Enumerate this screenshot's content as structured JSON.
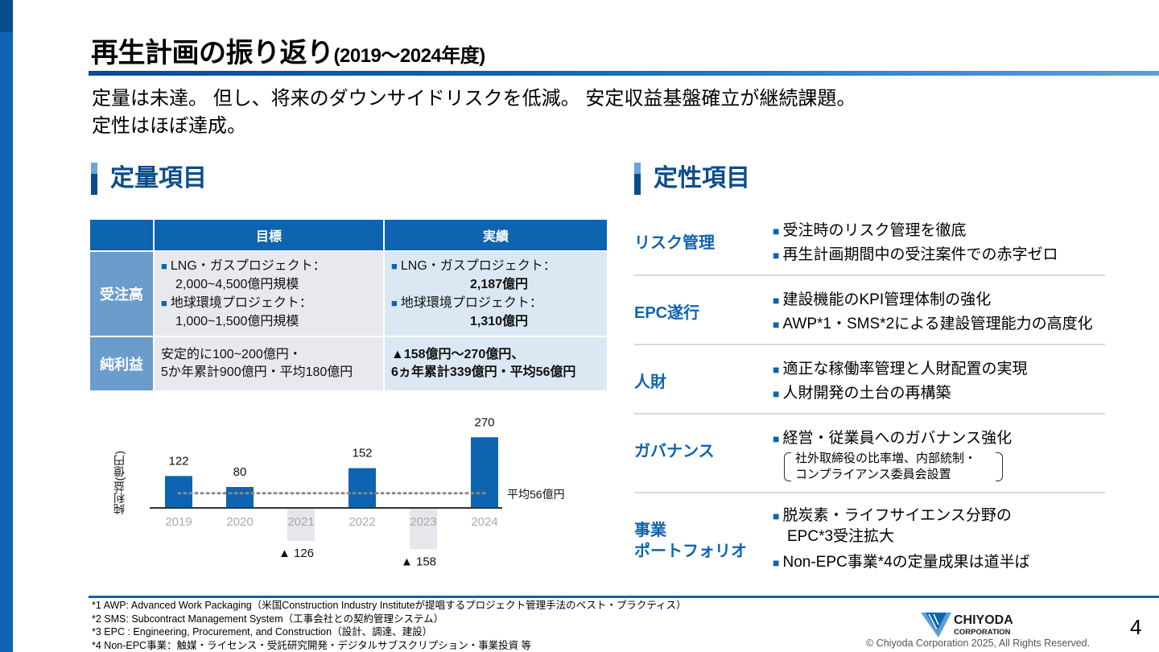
{
  "title": {
    "main": "再生計画の振り返り",
    "sub": "(2019～2024年度)"
  },
  "summary": {
    "line1": "定量は未達。 但し、将来のダウンサイドリスクを低減。 安定収益基盤確立が継続課題。",
    "line2": "定性はほぼ達成。"
  },
  "left_section": {
    "title": "定量項目"
  },
  "right_section": {
    "title": "定性項目"
  },
  "table": {
    "headers": [
      "目標",
      "実績"
    ],
    "rows": [
      {
        "label": "受注高",
        "target": [
          {
            "title": "LNG・ガスプロジェクト：",
            "value": "2,000~4,500億円規模"
          },
          {
            "title": "地球環境プロジェクト：",
            "value": "1,000~1,500億円規模"
          }
        ],
        "actual": [
          {
            "title": "LNG・ガスプロジェクト：",
            "value": "2,187億円"
          },
          {
            "title": "地球環境プロジェクト：",
            "value": "1,310億円"
          }
        ]
      },
      {
        "label": "純利益",
        "target": [
          "安定的に100~200億円・",
          "5か年累計900億円・平均180億円"
        ],
        "actual": [
          "▲158億円～270億円、",
          "6ヵ年累計339億円・平均56億円"
        ]
      }
    ]
  },
  "chart_data": {
    "type": "bar",
    "categories": [
      "2019",
      "2020",
      "2021",
      "2022",
      "2023",
      "2024"
    ],
    "values": [
      122,
      80,
      -126,
      152,
      -158,
      270
    ],
    "labels": [
      "122",
      "80",
      "▲ 126",
      "152",
      "▲ 158",
      "270"
    ],
    "ylabel": "純利益(億円)",
    "average": {
      "value": 56,
      "label": "平均56億円"
    },
    "colors": {
      "positive": "#0e64b0",
      "negative": "#e6e6ec",
      "axis": "#333333",
      "average": "#888888"
    },
    "ylim": [
      -158,
      270
    ]
  },
  "qualitative": [
    {
      "label": "リスク管理",
      "items": [
        "受注時のリスク管理を徹底",
        "再生計画期間中の受注案件での赤字ゼロ"
      ]
    },
    {
      "label": "EPC遂行",
      "items": [
        "建設機能のKPI管理体制の強化",
        "AWP*1・SMS*2による建設管理能力の高度化"
      ]
    },
    {
      "label": "人財",
      "items": [
        "適正な稼働率管理と人財配置の実現",
        "人財開発の土台の再構築"
      ]
    },
    {
      "label": "ガバナンス",
      "items": [
        "経営・従業員へのガバナンス強化"
      ],
      "bracket": [
        "社外取締役の比率増、内部統制・",
        "コンプライアンス委員会設置"
      ]
    },
    {
      "label_lines": [
        "事業",
        "ポートフォリオ"
      ],
      "items_multi": [
        [
          "脱炭素・ライフサイエンス分野の",
          "EPC*3受注拡大"
        ],
        [
          "Non-EPC事業*4の定量成果は道半ば"
        ]
      ]
    }
  ],
  "notes": [
    "*1 AWP: Advanced Work Packaging（米国Construction Industry Instituteが提唱するプロジェクト管理手法のベスト・プラクティス）",
    "*2 SMS: Subcontract Management System（工事会社との契約管理システム）",
    "*3 EPC : Engineering, Procurement, and Construction（設計、調達、建設）",
    "*4 Non-EPC事業：触媒・ライセンス・受託研究開発・デジタルサブスクリプション・事業投資 等"
  ],
  "footer": {
    "page_number": "4",
    "copyright": "© Chiyoda Corporation 2025, All Rights Reserved.",
    "logo_line1": "CHIYODA",
    "logo_line2": "CORPORATION"
  },
  "colors": {
    "brand_blue": "#0e64b0",
    "dark_blue": "#0a4d8c",
    "row_header": "#6a9ccc",
    "target_bg": "#e8e9ee",
    "actual_bg": "#dbe8f4"
  },
  "icons": {
    "bullet": "square-bullet-icon"
  }
}
